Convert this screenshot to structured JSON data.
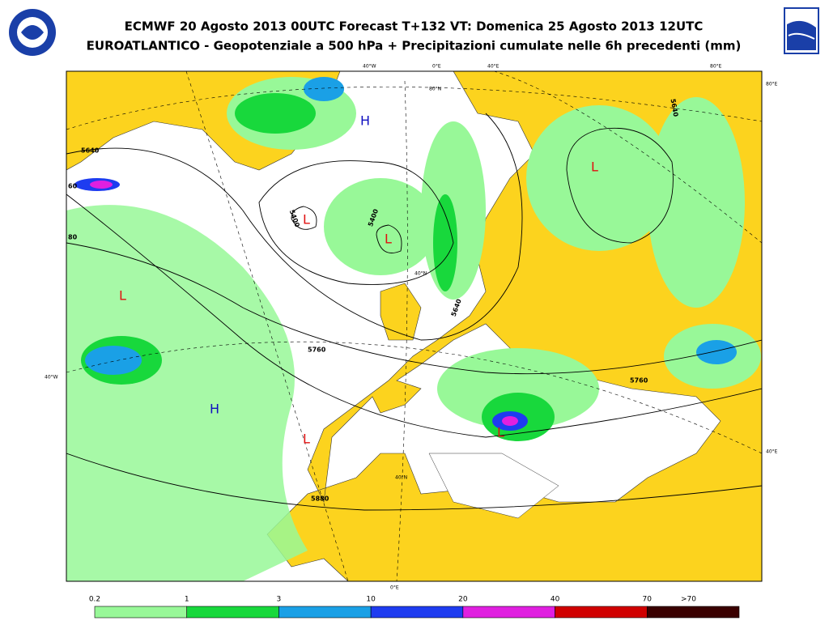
{
  "header": {
    "title_line1": "ECMWF 20 Agosto 2013 00UTC Forecast T+132 VT: Domenica 25 Agosto 2013 12UTC",
    "title_line2": "EUROATLANTICO - Geopotenziale a 500 hPa + Precipitazioni cumulate nelle 6h precedenti (mm)"
  },
  "map": {
    "pressure_centers": [
      "H",
      "L",
      "L",
      "L",
      "H",
      "L",
      "L",
      "L"
    ],
    "contour_labels": [
      "5640",
      "60",
      "80",
      "5400",
      "5400",
      "5760",
      "5760",
      "5880",
      "5640",
      "5640"
    ],
    "grid_labels": [
      "40°W",
      "0°E",
      "40°E",
      "80°E",
      "80°E",
      "80°N",
      "40°N",
      "40°W",
      "40°E",
      "0°E",
      "40°N"
    ]
  },
  "legend": {
    "labels": [
      "0.2",
      "1",
      "3",
      "10",
      "20",
      "40",
      "70",
      ">70"
    ],
    "colors": [
      "#98f898",
      "#18d83c",
      "#1aa0e6",
      "#1e3cf0",
      "#e020e0",
      "#d00000",
      "#3a0000"
    ]
  }
}
